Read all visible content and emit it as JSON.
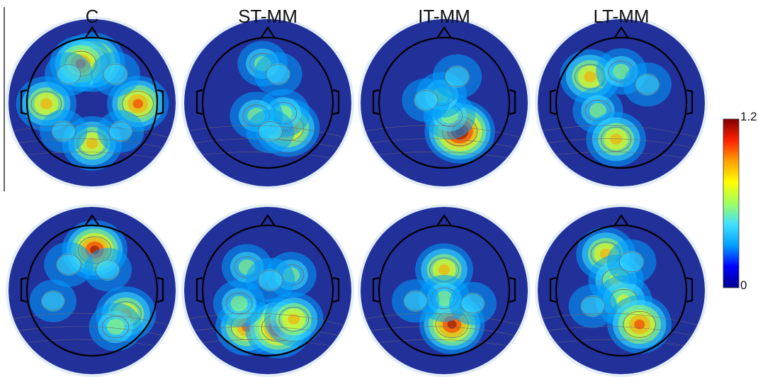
{
  "columns": [
    {
      "label": "C"
    },
    {
      "label": "ST-MM"
    },
    {
      "label": "IT-MM"
    },
    {
      "label": "LT-MM"
    }
  ],
  "colorbar": {
    "max_label": "1.2",
    "min_label": "0",
    "colormap": "jet",
    "stops": [
      "#00008f",
      "#0000ff",
      "#00a0ff",
      "#40e0ff",
      "#a0ff60",
      "#ffff00",
      "#ffa000",
      "#ff2000",
      "#800000"
    ]
  },
  "colors": {
    "background_low": "#22309a",
    "head_outline": "#000000",
    "halo": "#e3eef7",
    "contour": "#6b6b6b"
  },
  "rows": [
    {
      "maps": [
        {
          "name": "C",
          "hotspots": [
            {
              "u": 0.0,
              "v": -0.78,
              "val": 1.0
            },
            {
              "u": -0.22,
              "v": -0.75,
              "val": 0.85
            },
            {
              "u": -0.88,
              "v": 0.02,
              "val": 0.8
            },
            {
              "u": 0.88,
              "v": 0.02,
              "val": 0.85
            },
            {
              "u": 0.0,
              "v": 0.78,
              "val": 0.78
            },
            {
              "u": 0.45,
              "v": -0.55,
              "val": 0.35
            },
            {
              "u": -0.45,
              "v": -0.55,
              "val": 0.3
            },
            {
              "u": -0.55,
              "v": 0.55,
              "val": 0.28
            },
            {
              "u": 0.55,
              "v": 0.55,
              "val": 0.25
            }
          ]
        },
        {
          "name": "ST-MM",
          "hotspots": [
            {
              "u": 0.38,
              "v": 0.48,
              "val": 0.95
            },
            {
              "u": 0.3,
              "v": 0.2,
              "val": 0.5
            },
            {
              "u": -0.22,
              "v": 0.25,
              "val": 0.5
            },
            {
              "u": -0.1,
              "v": -0.75,
              "val": 0.38
            },
            {
              "u": 0.2,
              "v": -0.55,
              "val": 0.3
            },
            {
              "u": 0.05,
              "v": 0.55,
              "val": 0.3
            }
          ]
        },
        {
          "name": "IT-MM",
          "hotspots": [
            {
              "u": 0.3,
              "v": 0.55,
              "val": 1.2
            },
            {
              "u": 0.1,
              "v": 0.25,
              "val": 0.45
            },
            {
              "u": -0.05,
              "v": -0.15,
              "val": 0.4
            },
            {
              "u": 0.25,
              "v": -0.5,
              "val": 0.35
            },
            {
              "u": -0.35,
              "v": -0.05,
              "val": 0.3
            }
          ]
        },
        {
          "name": "LT-MM",
          "hotspots": [
            {
              "u": -0.6,
              "v": -0.5,
              "val": 0.8
            },
            {
              "u": 0.0,
              "v": -0.6,
              "val": 0.42
            },
            {
              "u": -0.45,
              "v": 0.15,
              "val": 0.4
            },
            {
              "u": -0.1,
              "v": 0.7,
              "val": 0.78
            },
            {
              "u": 0.5,
              "v": -0.35,
              "val": 0.32
            }
          ]
        }
      ]
    },
    {
      "maps": [
        {
          "name": "C",
          "hotspots": [
            {
              "u": 0.05,
              "v": -0.78,
              "val": 1.0
            },
            {
              "u": 0.65,
              "v": 0.45,
              "val": 0.8
            },
            {
              "u": 0.45,
              "v": 0.7,
              "val": 0.5
            },
            {
              "u": -0.45,
              "v": -0.5,
              "val": 0.35
            },
            {
              "u": -0.75,
              "v": 0.2,
              "val": 0.25
            },
            {
              "u": 0.3,
              "v": -0.4,
              "val": 0.3
            }
          ]
        },
        {
          "name": "ST-MM",
          "hotspots": [
            {
              "u": -0.4,
              "v": 0.7,
              "val": 0.9
            },
            {
              "u": 0.2,
              "v": 0.72,
              "val": 1.05
            },
            {
              "u": 0.5,
              "v": 0.55,
              "val": 0.75
            },
            {
              "u": -0.55,
              "v": 0.25,
              "val": 0.45
            },
            {
              "u": -0.4,
              "v": -0.45,
              "val": 0.4
            },
            {
              "u": 0.45,
              "v": -0.3,
              "val": 0.4
            },
            {
              "u": 0.05,
              "v": -0.2,
              "val": 0.35
            }
          ]
        },
        {
          "name": "IT-MM",
          "hotspots": [
            {
              "u": 0.0,
              "v": -0.4,
              "val": 0.7
            },
            {
              "u": 0.15,
              "v": 0.65,
              "val": 1.0
            },
            {
              "u": 0.0,
              "v": 0.15,
              "val": 0.45
            },
            {
              "u": -0.55,
              "v": 0.2,
              "val": 0.28
            },
            {
              "u": 0.55,
              "v": 0.25,
              "val": 0.28
            }
          ]
        },
        {
          "name": "LT-MM",
          "hotspots": [
            {
              "u": -0.3,
              "v": -0.7,
              "val": 0.75
            },
            {
              "u": -0.1,
              "v": -0.2,
              "val": 0.6
            },
            {
              "u": 0.05,
              "v": 0.2,
              "val": 0.65
            },
            {
              "u": 0.35,
              "v": 0.65,
              "val": 0.95
            },
            {
              "u": 0.2,
              "v": -0.55,
              "val": 0.35
            },
            {
              "u": -0.55,
              "v": 0.3,
              "val": 0.3
            }
          ]
        }
      ]
    }
  ]
}
